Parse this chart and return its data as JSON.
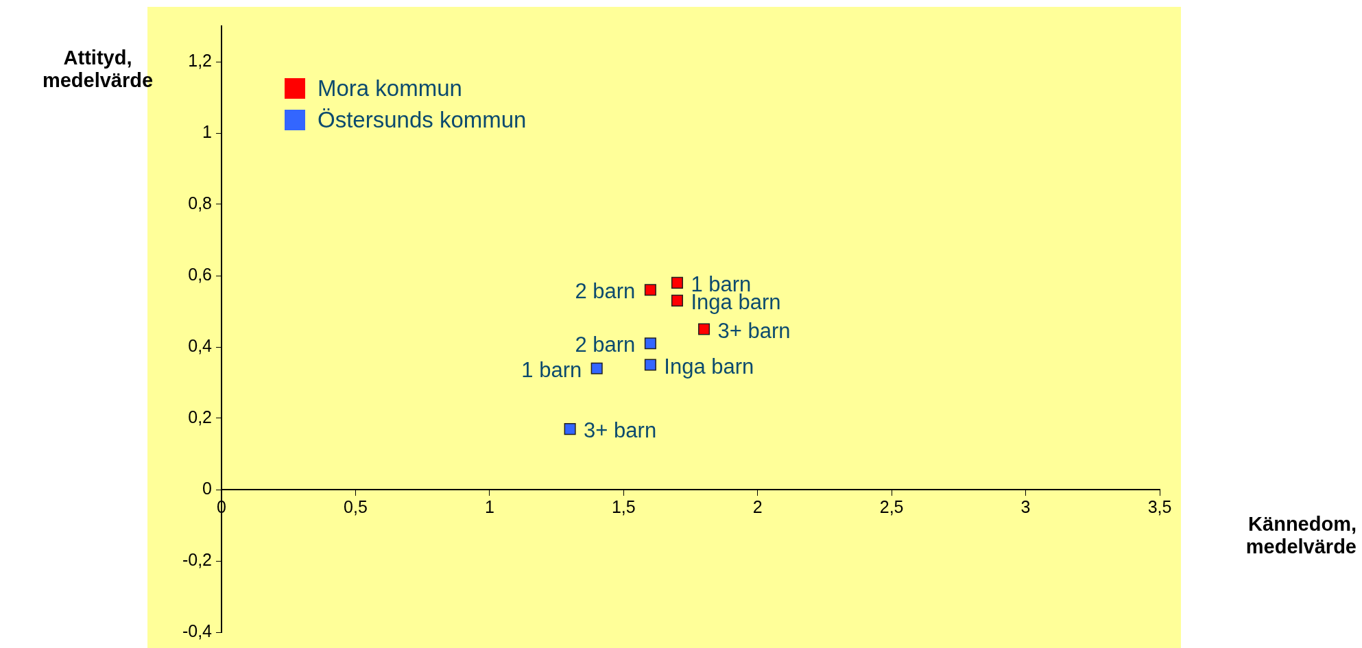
{
  "chart_data": {
    "type": "scatter",
    "xlabel": "Kännedom, medelvärde",
    "ylabel": "Attityd, medelvärde",
    "xlim": [
      0,
      3.5
    ],
    "xticks": [
      0,
      {
        "value": 0.5,
        "label": "0,5"
      },
      1,
      {
        "value": 1.5,
        "label": "1,5"
      },
      2,
      {
        "value": 2.5,
        "label": "2,5"
      },
      3,
      {
        "value": 3.5,
        "label": "3,5"
      }
    ],
    "ylim": [
      -0.4,
      1.3
    ],
    "yticks": [
      {
        "value": -0.4,
        "label": "-0,4"
      },
      {
        "value": -0.2,
        "label": "-0,2"
      },
      0,
      {
        "value": 0.2,
        "label": "0,2"
      },
      {
        "value": 0.4,
        "label": "0,4"
      },
      {
        "value": 0.6,
        "label": "0,6"
      },
      {
        "value": 0.8,
        "label": "0,8"
      },
      1,
      {
        "value": 1.2,
        "label": "1,2"
      }
    ],
    "series": [
      {
        "name": "Mora kommun",
        "color": "#ff0000",
        "x": [
          1.6,
          1.7,
          1.7,
          1.8
        ],
        "values": [
          0.56,
          0.58,
          0.53,
          0.45
        ]
      },
      {
        "name": "Östersunds kommun",
        "color": "#3366ff",
        "x": [
          1.6,
          1.4,
          1.6,
          1.3
        ],
        "values": [
          0.41,
          0.34,
          0.35,
          0.17
        ]
      }
    ],
    "annotations": [
      {
        "text": "2 barn",
        "x": 1.6,
        "y": 0.56
      },
      {
        "text": "1 barn",
        "x": 1.7,
        "y": 0.58
      },
      {
        "text": "Inga barn",
        "x": 1.7,
        "y": 0.53
      },
      {
        "text": "3+ barn",
        "x": 1.8,
        "y": 0.45
      },
      {
        "text": "2 barn",
        "x": 1.6,
        "y": 0.41
      },
      {
        "text": "1 barn",
        "x": 1.4,
        "y": 0.34
      },
      {
        "text": "Inga barn",
        "x": 1.6,
        "y": 0.35
      },
      {
        "text": "3+ barn",
        "x": 1.3,
        "y": 0.17
      }
    ],
    "marker": "square",
    "grid": false,
    "legend": "top left"
  }
}
